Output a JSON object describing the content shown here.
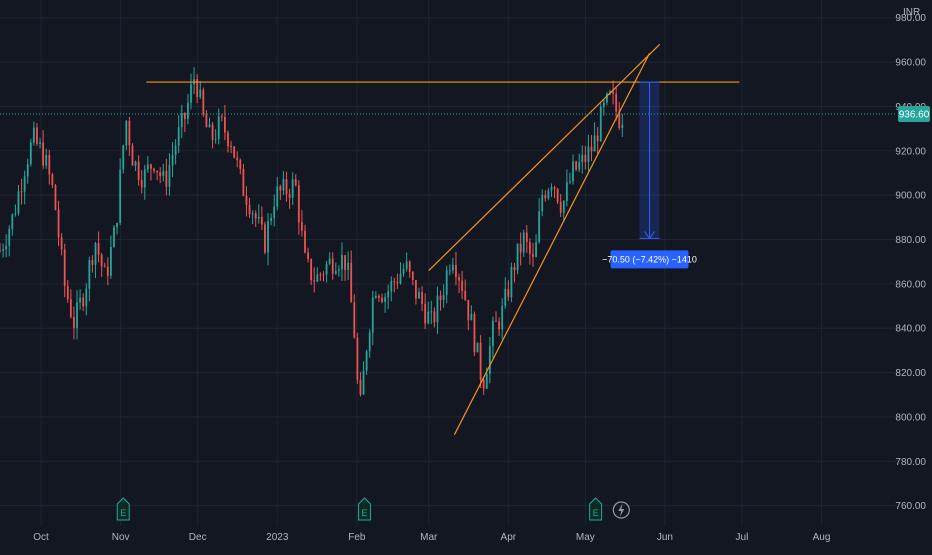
{
  "currency_label": "INR",
  "colors": {
    "background": "#131722",
    "grid": "#1f2430",
    "axis_text": "#b2b5be",
    "up": "#26a69a",
    "down": "#ef5350",
    "trendline": "#f7931a",
    "price_line": "#26a69a",
    "measure": "#2962ff"
  },
  "price_badge": "936.60",
  "measure_label": "−70.50 (−7.42%) −1410",
  "event_markers": [
    {
      "label": "E",
      "date": "2022-11-02",
      "icon": "earnings-icon"
    },
    {
      "label": "E",
      "date": "2023-02-04",
      "icon": "earnings-icon"
    },
    {
      "label": "E",
      "date": "2023-05-05",
      "icon": "earnings-icon"
    },
    {
      "label": "",
      "date": "2023-05-15",
      "icon": "lightning-icon"
    }
  ],
  "chart_data": {
    "type": "candlestick",
    "x_range": [
      "2022-09-15",
      "2023-08-30"
    ],
    "ylim": [
      740,
      988
    ],
    "y_ticks": [
      760,
      780,
      800,
      820,
      840,
      860,
      880,
      900,
      920,
      940,
      960,
      980
    ],
    "y_tick_labels": [
      "760.00",
      "780.00",
      "800.00",
      "820.00",
      "840.00",
      "860.00",
      "880.00",
      "900.00",
      "920.00",
      "940.00",
      "960.00",
      "980.00"
    ],
    "x_ticks": [
      {
        "label": "Oct",
        "date": "2022-10-01"
      },
      {
        "label": "Nov",
        "date": "2022-11-01"
      },
      {
        "label": "Dec",
        "date": "2022-12-01"
      },
      {
        "label": "2023",
        "date": "2023-01-01"
      },
      {
        "label": "Feb",
        "date": "2023-02-01"
      },
      {
        "label": "Mar",
        "date": "2023-03-01"
      },
      {
        "label": "Apr",
        "date": "2023-04-01"
      },
      {
        "label": "May",
        "date": "2023-05-01"
      },
      {
        "label": "Jun",
        "date": "2023-06-01"
      },
      {
        "label": "Jul",
        "date": "2023-07-01"
      },
      {
        "label": "Aug",
        "date": "2023-08-01"
      }
    ],
    "last_price": 936.6,
    "close_path": [
      [
        "2022-09-15",
        875
      ],
      [
        "2022-09-20",
        890
      ],
      [
        "2022-09-25",
        915
      ],
      [
        "2022-09-28",
        925
      ],
      [
        "2022-10-02",
        918
      ],
      [
        "2022-10-06",
        900
      ],
      [
        "2022-10-10",
        860
      ],
      [
        "2022-10-14",
        842
      ],
      [
        "2022-10-18",
        858
      ],
      [
        "2022-10-22",
        880
      ],
      [
        "2022-10-26",
        862
      ],
      [
        "2022-10-30",
        885
      ],
      [
        "2022-11-03",
        935
      ],
      [
        "2022-11-06",
        915
      ],
      [
        "2022-11-10",
        908
      ],
      [
        "2022-11-14",
        916
      ],
      [
        "2022-11-18",
        905
      ],
      [
        "2022-11-22",
        922
      ],
      [
        "2022-11-26",
        935
      ],
      [
        "2022-11-30",
        955
      ],
      [
        "2022-12-03",
        935
      ],
      [
        "2022-12-06",
        925
      ],
      [
        "2022-12-10",
        932
      ],
      [
        "2022-12-14",
        925
      ],
      [
        "2022-12-18",
        905
      ],
      [
        "2022-12-22",
        895
      ],
      [
        "2022-12-27",
        878
      ],
      [
        "2022-12-31",
        900
      ],
      [
        "2023-01-04",
        902
      ],
      [
        "2023-01-08",
        905
      ],
      [
        "2023-01-12",
        868
      ],
      [
        "2023-01-16",
        862
      ],
      [
        "2023-01-20",
        868
      ],
      [
        "2023-01-24",
        872
      ],
      [
        "2023-01-28",
        870
      ],
      [
        "2023-01-31",
        838
      ],
      [
        "2023-02-02",
        800
      ],
      [
        "2023-02-05",
        835
      ],
      [
        "2023-02-08",
        860
      ],
      [
        "2023-02-12",
        855
      ],
      [
        "2023-02-16",
        862
      ],
      [
        "2023-02-20",
        868
      ],
      [
        "2023-02-23",
        858
      ],
      [
        "2023-02-26",
        852
      ],
      [
        "2023-03-02",
        842
      ],
      [
        "2023-03-06",
        855
      ],
      [
        "2023-03-10",
        875
      ],
      [
        "2023-03-14",
        860
      ],
      [
        "2023-03-18",
        840
      ],
      [
        "2023-03-22",
        815
      ],
      [
        "2023-03-26",
        838
      ],
      [
        "2023-03-30",
        848
      ],
      [
        "2023-04-03",
        868
      ],
      [
        "2023-04-07",
        880
      ],
      [
        "2023-04-11",
        868
      ],
      [
        "2023-04-14",
        900
      ],
      [
        "2023-04-18",
        908
      ],
      [
        "2023-04-22",
        895
      ],
      [
        "2023-04-26",
        910
      ],
      [
        "2023-04-30",
        915
      ],
      [
        "2023-05-04",
        922
      ],
      [
        "2023-05-08",
        938
      ],
      [
        "2023-05-11",
        944
      ],
      [
        "2023-05-14",
        935
      ],
      [
        "2023-05-16",
        936.6
      ]
    ],
    "annotations": {
      "horizontal_line": {
        "y": 951,
        "from": "2022-11-11",
        "to": "2023-06-30"
      },
      "rising_wedge_upper": {
        "from": [
          "2023-02-29",
          866
        ],
        "to": [
          "2023-05-30",
          968
        ]
      },
      "rising_wedge_lower": {
        "from": [
          "2023-03-11",
          792
        ],
        "to": [
          "2023-05-26",
          964
        ]
      },
      "price_range": {
        "date": "2023-05-26",
        "from": 951,
        "to": 880.5
      }
    }
  }
}
